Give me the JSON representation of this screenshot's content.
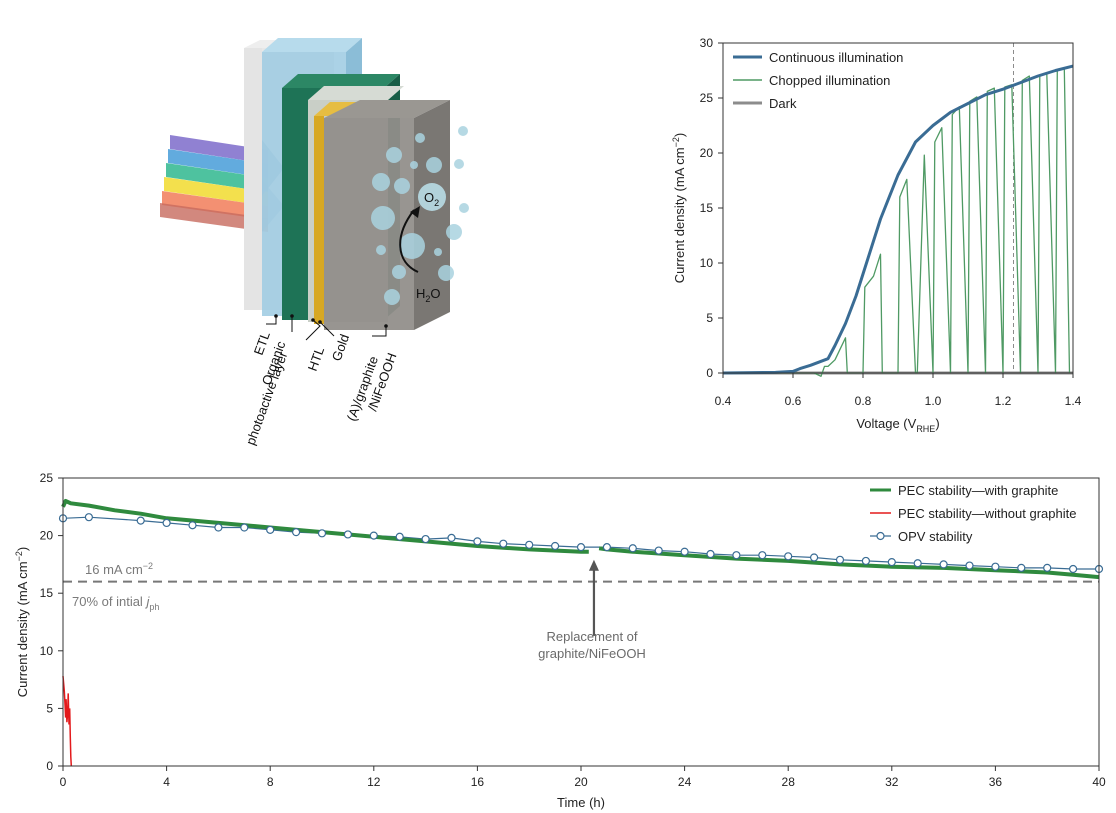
{
  "device": {
    "labels": {
      "etl": "ETL",
      "organic1": "Organic",
      "organic2": "photoactive layer",
      "htl": "HTL",
      "gold": "Gold",
      "anode1": "(A)/graphite",
      "anode2": "/NiFeOOH",
      "o2": "O",
      "o2_sub": "2",
      "h2o_a": "H",
      "h2o_sub": "2",
      "h2o_b": "O"
    },
    "colors": {
      "etl": "#d9d9d9",
      "glass": "#9ccae2",
      "organic": "#1e7356",
      "htl": "#c9cfc7",
      "gold": "#d7a823",
      "graphite": "#888580",
      "bubble": "#a9d2df"
    }
  },
  "chart_data": [
    {
      "type": "line",
      "xlabel": "Voltage (V",
      "xlabel_sub": "RHE",
      "xlabel_end": ")",
      "ylabel": "Current density (mA cm",
      "ylabel_sup": "−2",
      "ylabel_end": ")",
      "xlim": [
        0.4,
        1.4
      ],
      "ylim": [
        0,
        30
      ],
      "xticks": [
        0.4,
        0.6,
        0.8,
        1.0,
        1.2,
        1.4
      ],
      "xtick_labels": [
        "0.4",
        "0.6",
        "0.8",
        "1.0",
        "1.2",
        "1.4"
      ],
      "yticks": [
        0,
        5,
        10,
        15,
        20,
        25,
        30
      ],
      "ytick_labels": [
        "0",
        "5",
        "10",
        "15",
        "20",
        "25",
        "30"
      ],
      "reference_line_x": 1.23,
      "legend_position": "top-left",
      "series": [
        {
          "name": "Continuous illumination",
          "color": "#3a6c94",
          "x": [
            0.4,
            0.55,
            0.6,
            0.62,
            0.65,
            0.7,
            0.72,
            0.75,
            0.78,
            0.8,
            0.85,
            0.9,
            0.95,
            1.0,
            1.05,
            1.1,
            1.15,
            1.2,
            1.25,
            1.3,
            1.35,
            1.4
          ],
          "y": [
            0,
            0.05,
            0.15,
            0.4,
            0.7,
            1.3,
            2.5,
            4.5,
            7,
            9,
            14,
            18,
            21,
            22.5,
            23.7,
            24.5,
            25.3,
            25.8,
            26.4,
            27,
            27.5,
            27.9
          ]
        },
        {
          "name": "Chopped illumination",
          "color": "#4f9a64",
          "x": [
            0.4,
            0.66,
            0.68,
            0.69,
            0.7,
            0.72,
            0.75,
            0.755,
            0.76,
            0.8,
            0.805,
            0.83,
            0.85,
            0.855,
            0.87,
            0.9,
            0.905,
            0.925,
            0.95,
            0.955,
            0.975,
            1.0,
            1.005,
            1.025,
            1.05,
            1.055,
            1.075,
            1.1,
            1.105,
            1.125,
            1.15,
            1.155,
            1.175,
            1.2,
            1.205,
            1.225,
            1.25,
            1.255,
            1.275,
            1.3,
            1.305,
            1.325,
            1.35,
            1.355,
            1.375,
            1.39
          ],
          "y": [
            0,
            0,
            -0.3,
            0.6,
            0.6,
            1.2,
            3.2,
            0,
            0,
            0,
            7.8,
            8.8,
            10.8,
            0,
            0,
            0,
            16,
            17.6,
            0,
            0,
            19.8,
            0,
            21,
            22.3,
            0,
            23.5,
            24.2,
            0,
            24.7,
            25.1,
            0,
            25.6,
            25.9,
            0,
            26,
            26.2,
            0,
            26.6,
            27,
            0,
            27,
            27.2,
            0,
            27.6,
            27.7,
            0
          ]
        },
        {
          "name": "Dark",
          "color": "#8c8c8c",
          "x": [
            0.4,
            1.4
          ],
          "y": [
            0,
            0
          ]
        }
      ]
    },
    {
      "type": "line",
      "xlabel": "Time (h)",
      "ylabel": "Current density (mA cm",
      "ylabel_sup": "−2",
      "ylabel_end": ")",
      "xlim": [
        0,
        40
      ],
      "ylim": [
        0,
        25
      ],
      "xticks": [
        0,
        4,
        8,
        12,
        16,
        20,
        24,
        28,
        32,
        36,
        40
      ],
      "xtick_labels": [
        "0",
        "4",
        "8",
        "12",
        "16",
        "20",
        "24",
        "28",
        "32",
        "36",
        "40"
      ],
      "yticks": [
        0,
        5,
        10,
        15,
        20,
        25
      ],
      "ytick_labels": [
        "0",
        "5",
        "10",
        "15",
        "20",
        "25"
      ],
      "legend_position": "top-right",
      "reference_line_y": 16,
      "reference_label_top": "16 mA cm",
      "reference_label_top_sup": "−2",
      "reference_label_bottom": "70% of intial ",
      "reference_label_bottom_j": "j",
      "reference_label_bottom_sub": "ph",
      "annotation": {
        "text1": "Replacement of",
        "text2": "graphite/NiFeOOH",
        "x": 20.5,
        "y_from": 11.3,
        "y_to": 17.9
      },
      "series": [
        {
          "name": "PEC stability—with graphite",
          "color": "#2f8a3e",
          "segments": [
            {
              "x": [
                0,
                0.1,
                0.3,
                1,
                2,
                3,
                4,
                6,
                8,
                10,
                12,
                14,
                16,
                18,
                20,
                20.3
              ],
              "y": [
                22.5,
                23,
                22.8,
                22.6,
                22.2,
                21.9,
                21.5,
                21.1,
                20.7,
                20.3,
                19.9,
                19.5,
                19.1,
                18.8,
                18.6,
                18.6
              ]
            },
            {
              "x": [
                20.7,
                21,
                22,
                24,
                26,
                28,
                30,
                32,
                34,
                36,
                38,
                39,
                40
              ],
              "y": [
                18.9,
                18.8,
                18.6,
                18.3,
                18,
                17.8,
                17.5,
                17.3,
                17.2,
                17,
                16.8,
                16.6,
                16.4
              ]
            }
          ]
        },
        {
          "name": "PEC stability—without graphite",
          "color": "#e31a1c",
          "x": [
            0,
            0.05,
            0.08,
            0.1,
            0.12,
            0.15,
            0.18,
            0.2,
            0.23,
            0.26,
            0.28,
            0.3,
            0.32
          ],
          "y": [
            7.8,
            6.5,
            5.2,
            4.2,
            5.8,
            3.8,
            4.6,
            6.3,
            3.6,
            5,
            2.5,
            0.8,
            0
          ]
        },
        {
          "name": "OPV stability",
          "color": "#3a6c94",
          "x": [
            0,
            1,
            3,
            4,
            5,
            6,
            7,
            8,
            9,
            10,
            11,
            12,
            13,
            14,
            15,
            16,
            17,
            18,
            19,
            20,
            21,
            22,
            23,
            24,
            25,
            26,
            27,
            28,
            29,
            30,
            31,
            32,
            33,
            34,
            35,
            36,
            37,
            38,
            39,
            40
          ],
          "y": [
            21.5,
            21.6,
            21.3,
            21.1,
            20.9,
            20.7,
            20.7,
            20.5,
            20.3,
            20.2,
            20.1,
            20,
            19.9,
            19.7,
            19.8,
            19.5,
            19.3,
            19.2,
            19.1,
            19,
            19,
            18.9,
            18.7,
            18.6,
            18.4,
            18.3,
            18.3,
            18.2,
            18.1,
            17.9,
            17.8,
            17.7,
            17.6,
            17.5,
            17.4,
            17.3,
            17.2,
            17.2,
            17.1,
            17.1
          ]
        }
      ]
    }
  ]
}
